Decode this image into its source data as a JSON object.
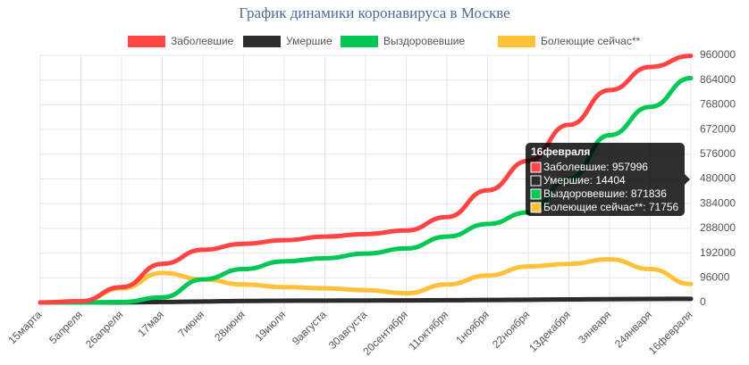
{
  "chart_data": {
    "type": "line",
    "title": "График динамики коронавируса в Москве",
    "categories": [
      "15марта",
      "5апреля",
      "26апреля",
      "17мая",
      "7июня",
      "28июня",
      "19июля",
      "9августа",
      "30августа",
      "20сентября",
      "11октября",
      "1ноября",
      "22ноября",
      "13декабря",
      "3января",
      "24января",
      "16февраля"
    ],
    "series": [
      {
        "name": "Заболевшие",
        "color": "#ff4444",
        "values": [
          0,
          5000,
          60000,
          150000,
          205000,
          228000,
          242000,
          256000,
          266000,
          280000,
          332000,
          436000,
          550000,
          690000,
          825000,
          915000,
          957996
        ]
      },
      {
        "name": "Умершие",
        "color": "#2b2b2b",
        "values": [
          0,
          50,
          500,
          2000,
          4000,
          6000,
          7000,
          7500,
          8000,
          8300,
          9000,
          10000,
          11000,
          12000,
          13000,
          13800,
          14404
        ]
      },
      {
        "name": "Выздоровевшие",
        "color": "#00c853",
        "values": [
          0,
          0,
          2000,
          20000,
          90000,
          130000,
          160000,
          172000,
          190000,
          210000,
          256000,
          305000,
          350000,
          480000,
          650000,
          760000,
          871836
        ]
      },
      {
        "name": "Болеющие сейчас**",
        "color": "#ffc03a",
        "values": [
          0,
          5000,
          55000,
          115000,
          90000,
          70000,
          60000,
          55000,
          48000,
          36000,
          70000,
          105000,
          140000,
          150000,
          168000,
          130000,
          71756
        ]
      }
    ],
    "ylim": [
      0,
      960000
    ],
    "yticks": [
      0,
      96000,
      192000,
      288000,
      384000,
      480000,
      576000,
      672000,
      768000,
      864000,
      960000
    ],
    "grid": true,
    "legend": "top",
    "tooltip": {
      "title": "16февраля",
      "items": [
        "Заболевшие: 957996",
        "Умершие: 14404",
        "Выздоровевшие: 871836",
        "Болеющие сейчас**: 71756"
      ]
    }
  }
}
